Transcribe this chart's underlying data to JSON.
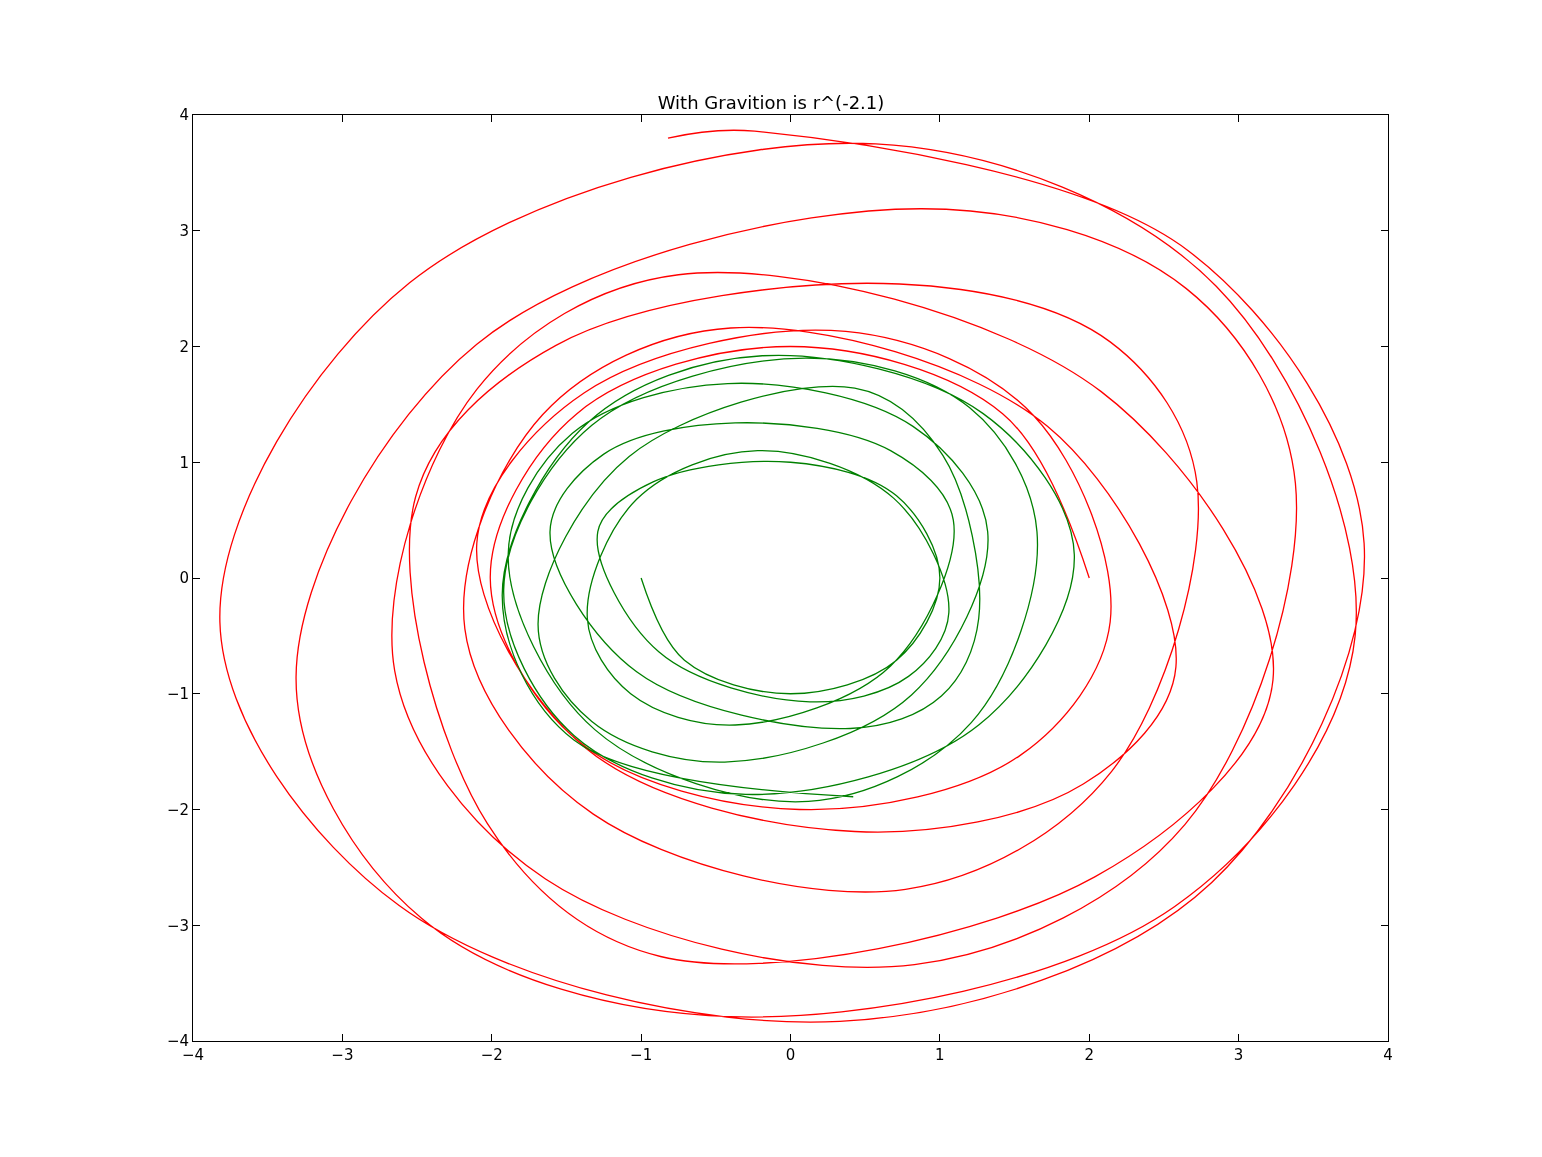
{
  "chart_data": {
    "type": "line",
    "title": "With Gravition is r^(-2.1)",
    "xlim": [
      -4,
      4
    ],
    "ylim": [
      -4,
      4
    ],
    "xticks": [
      {
        "value": -4,
        "label": "−4"
      },
      {
        "value": -3,
        "label": "−3"
      },
      {
        "value": -2,
        "label": "−2"
      },
      {
        "value": -1,
        "label": "−1"
      },
      0,
      1,
      2,
      3,
      4
    ],
    "yticks": [
      {
        "value": -4,
        "label": "−4"
      },
      {
        "value": -3,
        "label": "−3"
      },
      {
        "value": -2,
        "label": "−2"
      },
      {
        "value": -1,
        "label": "−1"
      },
      0,
      1,
      2,
      3,
      4
    ],
    "marker": "none",
    "line_style": "solid",
    "series": [
      {
        "color": "#ff0000",
        "x": [
          2.0,
          1.42,
          0,
          -1.43,
          -2.01,
          -1.41,
          0.06,
          1.54,
          2.14,
          1.63,
          0.37,
          -1.38,
          -2.1,
          -1.37,
          0.43,
          1.96,
          2.58,
          1.72,
          -0.4,
          -1.66,
          -2.18,
          -1.32,
          0.77,
          2.15,
          2.72,
          2.14,
          0.73,
          -1.57,
          -2.51,
          -2.03,
          -0.87,
          2.04,
          3.23,
          2.08,
          -0.75,
          -2.1,
          -2.65,
          -1.64,
          0.83,
          2.64,
          3.38,
          2.65,
          0.87,
          -2.1,
          -3.31,
          -2.47,
          -0.4,
          2.57,
          3.78,
          2.85,
          0.57,
          -2.55,
          -3.82,
          -2.62,
          0.33,
          2.82,
          3.84,
          2.66,
          -0.24,
          -0.82
        ],
        "values": [
          0,
          1.42,
          2.0,
          1.42,
          0,
          -1.42,
          -2.0,
          -1.53,
          -0.38,
          1.4,
          2.13,
          1.6,
          0.3,
          -1.47,
          -2.19,
          -1.78,
          -0.77,
          1.31,
          2.16,
          1.41,
          -0.44,
          -2.04,
          -2.69,
          -1.67,
          0.83,
          2.04,
          2.54,
          2.01,
          0.7,
          -2.12,
          -3.27,
          -2.58,
          -0.88,
          1.61,
          2.62,
          1.63,
          -0.8,
          -2.6,
          -3.34,
          -2.13,
          0.82,
          2.5,
          3.19,
          2.02,
          -0.85,
          -2.94,
          -3.79,
          -2.84,
          -0.5,
          2.52,
          3.75,
          2.55,
          -0.38,
          -2.83,
          -3.83,
          -2.63,
          0.3,
          2.83,
          3.86,
          3.8
        ]
      },
      {
        "color": "#008000",
        "x": [
          -1.0,
          -0.71,
          0,
          0.71,
          1.0,
          0.71,
          0,
          -0.92,
          -1.29,
          -0.88,
          0.13,
          0.79,
          1.06,
          0.69,
          -0.22,
          -1.03,
          -1.36,
          -1.07,
          -0.37,
          0.67,
          1.09,
          0.67,
          -0.37,
          -1.25,
          -1.61,
          -1.03,
          0.4,
          1.01,
          1.26,
          1.02,
          0.43,
          -1.08,
          -1.69,
          -1.33,
          -0.44,
          0.81,
          1.32,
          0.82,
          -0.42,
          -1.46,
          -1.89,
          -1.31,
          0.12,
          1.21,
          1.65,
          1.2,
          0.1,
          -1.33,
          -1.92,
          -1.45,
          -0.3,
          1.26,
          1.9,
          1.29,
          -0.19,
          -1.35,
          -1.93,
          -1.45,
          0.42
        ],
        "values": [
          0,
          -0.71,
          -1.0,
          -0.71,
          0,
          0.71,
          1.0,
          0.83,
          0.4,
          -0.64,
          -1.07,
          -0.85,
          -0.3,
          0.69,
          1.1,
          0.68,
          -0.35,
          -1.0,
          -1.27,
          -0.76,
          0.5,
          1.1,
          1.34,
          1.07,
          0.4,
          -0.81,
          -1.3,
          -1.02,
          -0.35,
          1.06,
          1.64,
          1.05,
          -0.4,
          -1.24,
          -1.59,
          -1.01,
          0.4,
          1.31,
          1.68,
          1.25,
          0.2,
          -1.31,
          -1.93,
          -1.25,
          0.4,
          1.47,
          1.9,
          1.32,
          -0.1,
          -1.36,
          -1.87,
          -1.27,
          0.2,
          1.42,
          1.92,
          1.35,
          -0.15,
          -1.4,
          -1.89
        ]
      }
    ]
  }
}
